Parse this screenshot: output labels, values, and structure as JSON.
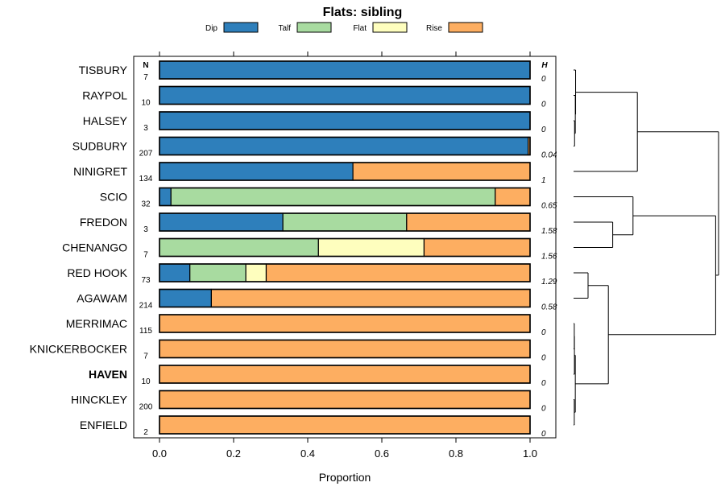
{
  "chart_data": {
    "type": "bar",
    "subtype": "stacked-horizontal-proportion",
    "title": "Flats: sibling",
    "xlabel": "Proportion",
    "ylabel": "",
    "xlim": [
      0,
      1
    ],
    "xticks": [
      0.0,
      0.2,
      0.4,
      0.6,
      0.8,
      1.0
    ],
    "xtick_labels": [
      "0.0",
      "0.2",
      "0.4",
      "0.6",
      "0.8",
      "1.0"
    ],
    "n_header": "N",
    "h_header": "H",
    "legend": [
      {
        "name": "Dip",
        "color": "#2e7fbb"
      },
      {
        "name": "Talf",
        "color": "#a8dba0"
      },
      {
        "name": "Flat",
        "color": "#fefebe"
      },
      {
        "name": "Rise",
        "color": "#fdae61"
      }
    ],
    "categories": [
      "TISBURY",
      "RAYPOL",
      "HALSEY",
      "SUDBURY",
      "NINIGRET",
      "SCIO",
      "FREDON",
      "CHENANGO",
      "RED HOOK",
      "AGAWAM",
      "MERRIMAC",
      "KNICKERBOCKER",
      "HAVEN",
      "HINCKLEY",
      "ENFIELD"
    ],
    "highlight": "HAVEN",
    "n": [
      "7",
      "10",
      "3",
      "207",
      "134",
      "32",
      "3",
      "7",
      "73",
      "214",
      "115",
      "7",
      "10",
      "200",
      "2"
    ],
    "h": [
      "0",
      "0",
      "0",
      "0.04",
      "1",
      "0.65",
      "1.58",
      "1.56",
      "1.29",
      "0.58",
      "0",
      "0",
      "0",
      "0",
      "0"
    ],
    "series": [
      {
        "name": "Dip",
        "values": [
          1,
          1,
          1,
          0.995,
          0.522,
          0.031,
          0.333,
          0,
          0.082,
          0.14,
          0,
          0,
          0,
          0,
          0
        ]
      },
      {
        "name": "Talf",
        "values": [
          0,
          0,
          0,
          0,
          0,
          0.875,
          0.334,
          0.429,
          0.151,
          0,
          0,
          0,
          0,
          0,
          0
        ]
      },
      {
        "name": "Flat",
        "values": [
          0,
          0,
          0,
          0,
          0,
          0,
          0,
          0.285,
          0.055,
          0,
          0,
          0,
          0,
          0,
          0
        ]
      },
      {
        "name": "Rise",
        "values": [
          0,
          0,
          0,
          0.005,
          0.478,
          0.094,
          0.333,
          0.286,
          0.712,
          0.86,
          1,
          1,
          1,
          1,
          1
        ]
      }
    ],
    "dendrogram": {
      "merges": [
        {
          "a": "SUDBURY",
          "b": "HALSEY",
          "height": 0.007
        },
        {
          "a": 0,
          "b": "RAYPOL",
          "height": 0.012
        },
        {
          "a": 1,
          "b": "TISBURY",
          "height": 0.014
        },
        {
          "a": "MERRIMAC",
          "b": "KNICKERBOCKER",
          "height": 0.005
        },
        {
          "a": "HINCKLEY",
          "b": "ENFIELD",
          "height": 0.005
        },
        {
          "a": 3,
          "b": "HAVEN",
          "height": 0.006
        },
        {
          "a": 5,
          "b": 4,
          "height": 0.012
        },
        {
          "a": "FREDON",
          "b": "CHENANGO",
          "height": 0.27
        },
        {
          "a": "SCIO",
          "b": 7,
          "height": 0.41
        },
        {
          "a": "RED HOOK",
          "b": "AGAWAM",
          "height": 0.1
        },
        {
          "a": 9,
          "b": 6,
          "height": 0.24
        },
        {
          "a": 2,
          "b": "NINIGRET",
          "height": 0.44
        },
        {
          "a": 8,
          "b": 10,
          "height": 0.98
        },
        {
          "a": 11,
          "b": 12,
          "height": 1.0
        }
      ]
    }
  }
}
